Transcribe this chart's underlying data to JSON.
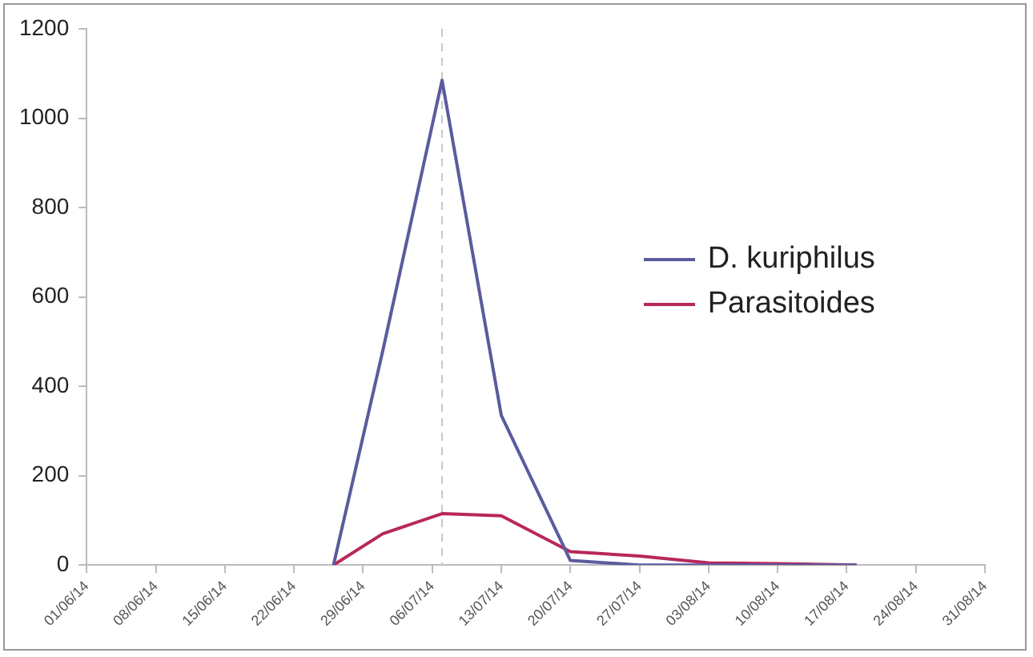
{
  "chart_data": {
    "type": "line",
    "x": [
      "--06-26",
      "--07-01",
      "--07-07",
      "--07-13",
      "--07-20",
      "--07-27",
      "--08-03",
      "--08-10",
      "--08-18"
    ],
    "series": [
      {
        "name": "D. kuriphilus",
        "color": "#5b5b9e",
        "values": [
          0,
          480,
          1085,
          335,
          10,
          0,
          0,
          0,
          0
        ]
      },
      {
        "name": "Parasitoides",
        "color": "#b8285a",
        "values": [
          0,
          70,
          115,
          110,
          30,
          20,
          5,
          3,
          0
        ]
      }
    ],
    "xlim": [
      "--06-01",
      "--08-31"
    ],
    "xticks": [
      {
        "value": "--06-01",
        "label": "01/06/14"
      },
      {
        "value": "--06-08",
        "label": "08/06/14"
      },
      {
        "value": "--06-15",
        "label": "15/06/14"
      },
      {
        "value": "--06-22",
        "label": "22/06/14"
      },
      {
        "value": "--06-29",
        "label": "29/06/14"
      },
      {
        "value": "--07-06",
        "label": "06/07/14"
      },
      {
        "value": "--07-13",
        "label": "13/07/14"
      },
      {
        "value": "--07-20",
        "label": "20/07/14"
      },
      {
        "value": "--07-27",
        "label": "27/07/14"
      },
      {
        "value": "--08-03",
        "label": "03/08/14"
      },
      {
        "value": "--08-10",
        "label": "10/08/14"
      },
      {
        "value": "--08-17",
        "label": "17/08/14"
      },
      {
        "value": "--08-24",
        "label": "24/08/14"
      },
      {
        "value": "--08-31",
        "label": "31/08/14"
      }
    ],
    "ylim": [
      0,
      1200
    ],
    "yticks": [
      0,
      200,
      400,
      600,
      800,
      1000,
      1200
    ],
    "ref_lines": [
      {
        "axis": "x",
        "value": "--07-07",
        "color": "#c8c8c8",
        "line_style": "dashed"
      }
    ],
    "grid": false,
    "legend": "right",
    "marker": "none",
    "line_style": "solid"
  }
}
